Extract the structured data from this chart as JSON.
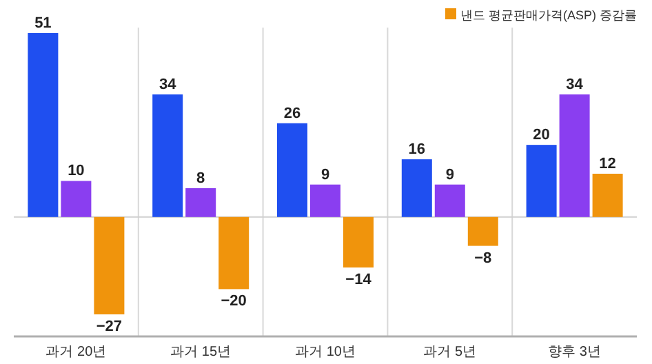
{
  "chart_data": {
    "type": "bar",
    "categories": [
      "과거 20년",
      "과거 15년",
      "과거 10년",
      "과거 5년",
      "향후 3년"
    ],
    "series": [
      {
        "color": "#1f4ff0",
        "values": [
          51,
          34,
          26,
          16,
          20
        ]
      },
      {
        "color": "#8a3ef0",
        "values": [
          10,
          8,
          9,
          9,
          34
        ]
      },
      {
        "name": "낸드 평균판매가격(ASP) 증감률",
        "color": "#f0940c",
        "values": [
          -27,
          -20,
          -14,
          -8,
          12
        ]
      }
    ],
    "data_labels": true,
    "grid": "x",
    "legend": "top right"
  }
}
